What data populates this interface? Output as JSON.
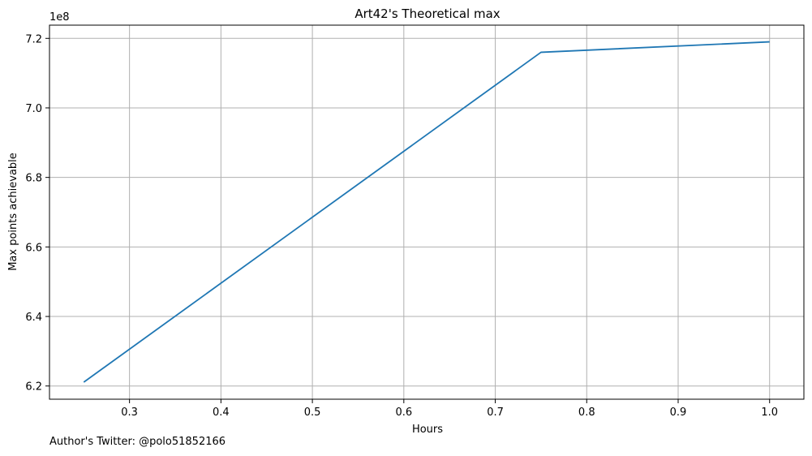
{
  "chart_data": {
    "type": "line",
    "title": "Art42's Theoretical max",
    "xlabel": "Hours",
    "ylabel": "Max points achievable",
    "y_offset_label": "1e8",
    "x_ticks": [
      0.3,
      0.4,
      0.5,
      0.6,
      0.7,
      0.8,
      0.9,
      1.0
    ],
    "x_tick_labels": [
      "0.3",
      "0.4",
      "0.5",
      "0.6",
      "0.7",
      "0.8",
      "0.9",
      "1.0"
    ],
    "y_ticks": [
      6.2,
      6.4,
      6.6,
      6.8,
      7.0,
      7.2
    ],
    "y_tick_labels": [
      "6.2",
      "6.4",
      "6.6",
      "6.8",
      "7.0",
      "7.2"
    ],
    "xlim": [
      0.2125,
      1.0375
    ],
    "ylim": [
      6.162,
      7.238
    ],
    "grid": true,
    "series": [
      {
        "color": "#1f77b4",
        "x": [
          0.25,
          0.75,
          1.0
        ],
        "y": [
          6.211,
          7.16,
          7.19
        ]
      }
    ]
  },
  "footer": {
    "text": "Author's Twitter: @polo51852166"
  }
}
